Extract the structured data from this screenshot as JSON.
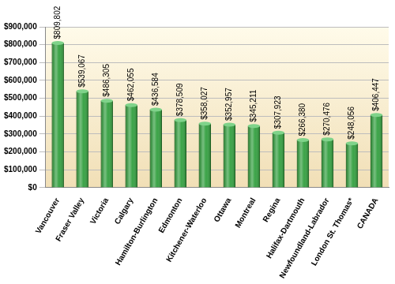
{
  "chart_data": {
    "type": "bar",
    "categories": [
      "Vancouver",
      "Fraser Valley",
      "Victoria",
      "Calgary",
      "Hamilton-Burlington",
      "Edmonton",
      "Kitchener-Waterloo",
      "Ottawa",
      "Montreal",
      "Regina",
      "Halifax-Dartmouth",
      "Newfoundland-Labrador",
      "London St. Thomas*",
      "CANADA"
    ],
    "values": [
      809802,
      539067,
      486305,
      462055,
      436584,
      378509,
      358027,
      352957,
      345211,
      307923,
      266380,
      270476,
      248056,
      406447
    ],
    "value_labels": [
      "$809,802",
      "$539,067",
      "$486,305",
      "$462,055",
      "$436,584",
      "$378,509",
      "$358,027",
      "$352,957",
      "$345,211",
      "$307,923",
      "$266,380",
      "$270,476",
      "$248,056",
      "$406,447"
    ],
    "data_labels": true,
    "color": "#2f9e3c",
    "ylim": [
      0,
      900000
    ],
    "yticks": [
      {
        "value": 0,
        "label": "$0"
      },
      {
        "value": 100000,
        "label": "$100,000"
      },
      {
        "value": 200000,
        "label": "$200,000"
      },
      {
        "value": 300000,
        "label": "$300,000"
      },
      {
        "value": 400000,
        "label": "$400,000"
      },
      {
        "value": 500000,
        "label": "$500,000"
      },
      {
        "value": 600000,
        "label": "$600,000"
      },
      {
        "value": 700000,
        "label": "$700,000"
      },
      {
        "value": 800000,
        "label": "$800,000"
      },
      {
        "value": 900000,
        "label": "$900,000"
      }
    ],
    "grid": true
  }
}
